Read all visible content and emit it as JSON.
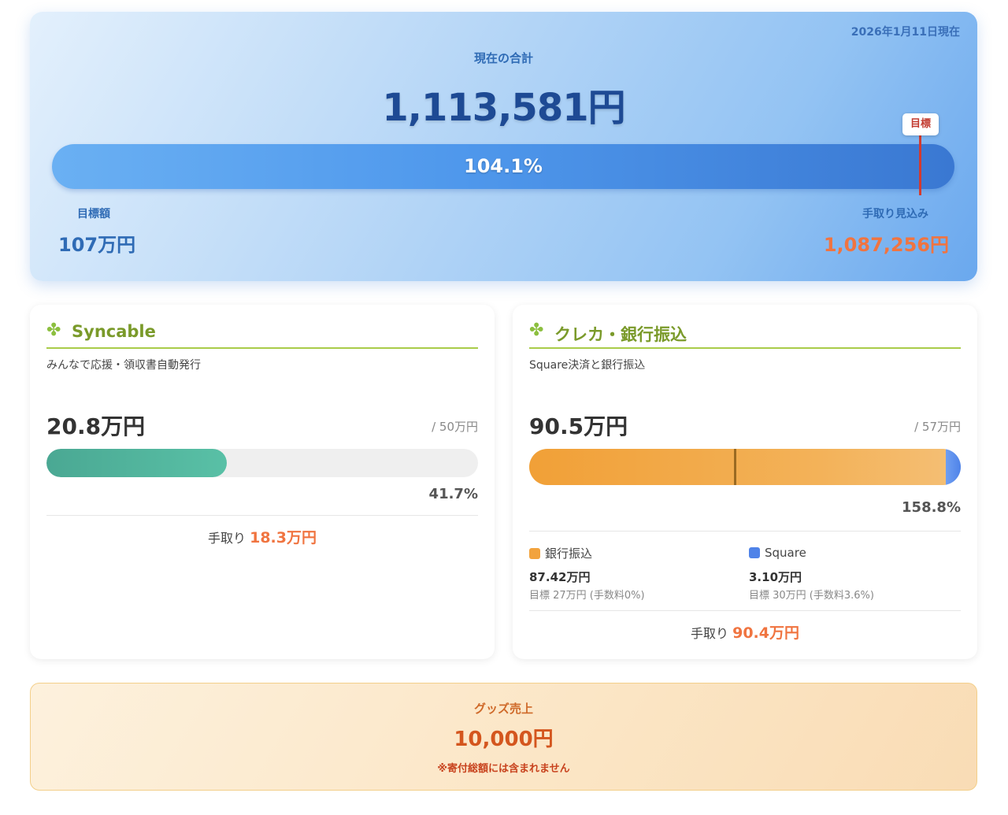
{
  "hero": {
    "date": "2026年1月11日現在",
    "total_label": "現在の合計",
    "total_value": "1,113,581円",
    "progress_text": "104.1%",
    "progress": 1.041,
    "marker_label": "目標",
    "goal_label": "目標額",
    "goal_value": "107万円",
    "net_label": "手取り見込み",
    "net_value": "1,087,256円"
  },
  "syncable": {
    "icon": "clover-icon",
    "title": "Syncable",
    "subtitle": "みんなで応援・領収書自動発行",
    "amount": "20.8万円",
    "target": "/ 50万円",
    "progress": 0.417,
    "percent": "41.7%",
    "net_label": "手取り",
    "net_value": "18.3万円"
  },
  "card_bank": {
    "icon": "clover-icon",
    "title": "クレカ・銀行振込",
    "subtitle": "Square決済と銀行振込",
    "amount": "90.5万円",
    "target": "/ 57万円",
    "progress": 1.588,
    "percent": "158.8%",
    "segments": {
      "bank_fraction": 0.966,
      "square_fraction": 0.034,
      "goal_marker_fraction": 0.474
    },
    "legend": [
      {
        "name": "銀行振込",
        "value": "87.42万円",
        "note": "目標 27万円 (手数料0%)",
        "color": "#f2a33d"
      },
      {
        "name": "Square",
        "value": "3.10万円",
        "note": "目標 30万円 (手数料3.6%)",
        "color": "#4f83e8"
      }
    ],
    "net_label": "手取り",
    "net_value": "90.4万円"
  },
  "goods": {
    "label": "グッズ売上",
    "value": "10,000円",
    "note": "※寄付総額には含まれません"
  }
}
